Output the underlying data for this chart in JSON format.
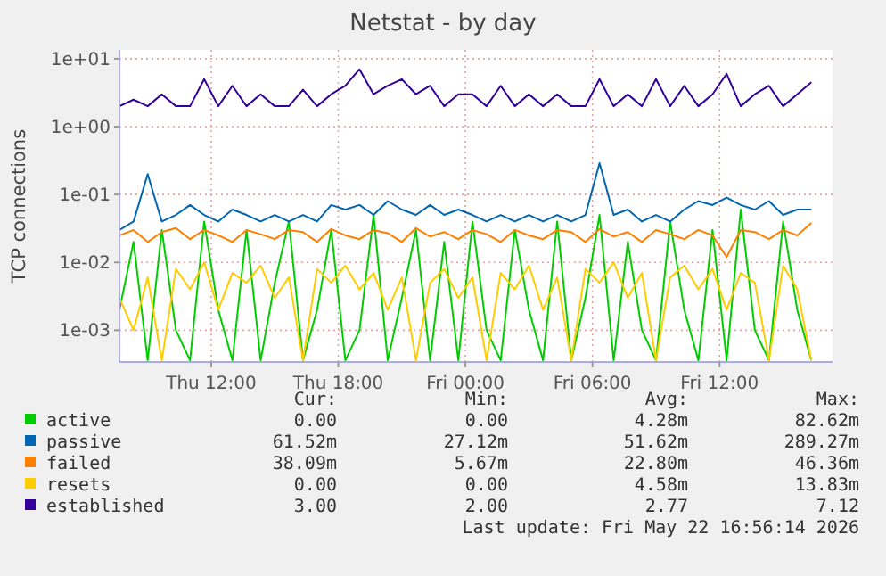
{
  "chart_data": {
    "type": "line",
    "title": "Netstat - by day",
    "ylabel": "TCP connections",
    "log": "y",
    "grid": true,
    "legend": "bottom",
    "ylim": [
      0.00034,
      13.5
    ],
    "yticks": [
      {
        "value": 0.001,
        "label": "1e-03"
      },
      {
        "value": 0.01,
        "label": "1e-02"
      },
      {
        "value": 0.1,
        "label": "1e-01"
      },
      {
        "value": 1,
        "label": "1e+00"
      },
      {
        "value": 10,
        "label": "1e+01"
      }
    ],
    "xlim": [
      "2026-05-21T07:40",
      "2026-05-22T17:20"
    ],
    "xticks": [
      {
        "value": "2026-05-21T12:00",
        "label": "Thu 12:00"
      },
      {
        "value": "2026-05-21T18:00",
        "label": "Thu 18:00"
      },
      {
        "value": "2026-05-22T00:00",
        "label": "Fri 00:00"
      },
      {
        "value": "2026-05-22T06:00",
        "label": "Fri 06:00"
      },
      {
        "value": "2026-05-22T12:00",
        "label": "Fri 12:00"
      }
    ],
    "x": [
      "2026-05-21T07:40",
      "2026-05-21T08:20",
      "2026-05-21T09:00",
      "2026-05-21T09:40",
      "2026-05-21T10:20",
      "2026-05-21T11:00",
      "2026-05-21T11:40",
      "2026-05-21T12:20",
      "2026-05-21T13:00",
      "2026-05-21T13:40",
      "2026-05-21T14:20",
      "2026-05-21T15:00",
      "2026-05-21T15:40",
      "2026-05-21T16:20",
      "2026-05-21T17:00",
      "2026-05-21T17:40",
      "2026-05-21T18:20",
      "2026-05-21T19:00",
      "2026-05-21T19:40",
      "2026-05-21T20:20",
      "2026-05-21T21:00",
      "2026-05-21T21:40",
      "2026-05-21T22:20",
      "2026-05-21T23:00",
      "2026-05-21T23:40",
      "2026-05-22T00:20",
      "2026-05-22T01:00",
      "2026-05-22T01:40",
      "2026-05-22T02:20",
      "2026-05-22T03:00",
      "2026-05-22T03:40",
      "2026-05-22T04:20",
      "2026-05-22T05:00",
      "2026-05-22T05:40",
      "2026-05-22T06:20",
      "2026-05-22T07:00",
      "2026-05-22T07:40",
      "2026-05-22T08:20",
      "2026-05-22T09:00",
      "2026-05-22T09:40",
      "2026-05-22T10:20",
      "2026-05-22T11:00",
      "2026-05-22T11:40",
      "2026-05-22T12:20",
      "2026-05-22T13:00",
      "2026-05-22T13:40",
      "2026-05-22T14:20",
      "2026-05-22T15:00",
      "2026-05-22T15:40",
      "2026-05-22T16:20"
    ],
    "series": [
      {
        "name": "active",
        "color": "#00cc00",
        "values": [
          0.002,
          0.02,
          0.00036,
          0.03,
          0.001,
          0.00036,
          0.04,
          0.002,
          0.00036,
          0.03,
          0.00036,
          0.005,
          0.04,
          0.00036,
          0.002,
          0.03,
          0.00036,
          0.001,
          0.05,
          0.00036,
          0.003,
          0.03,
          0.00036,
          0.02,
          0.00036,
          0.04,
          0.001,
          0.00036,
          0.03,
          0.002,
          0.00036,
          0.04,
          0.00036,
          0.003,
          0.05,
          0.00036,
          0.02,
          0.001,
          0.00036,
          0.04,
          0.002,
          0.00036,
          0.03,
          0.00036,
          0.06,
          0.001,
          0.00036,
          0.04,
          0.002,
          0.00036
        ]
      },
      {
        "name": "passive",
        "color": "#0066b3",
        "values": [
          0.03,
          0.04,
          0.2,
          0.04,
          0.05,
          0.07,
          0.05,
          0.04,
          0.06,
          0.05,
          0.04,
          0.05,
          0.04,
          0.05,
          0.04,
          0.07,
          0.06,
          0.07,
          0.05,
          0.08,
          0.06,
          0.05,
          0.07,
          0.05,
          0.06,
          0.05,
          0.04,
          0.05,
          0.04,
          0.05,
          0.04,
          0.05,
          0.04,
          0.05,
          0.29,
          0.05,
          0.06,
          0.04,
          0.05,
          0.04,
          0.06,
          0.08,
          0.07,
          0.09,
          0.07,
          0.06,
          0.08,
          0.05,
          0.06,
          0.06
        ]
      },
      {
        "name": "failed",
        "color": "#ff8000",
        "values": [
          0.025,
          0.03,
          0.02,
          0.028,
          0.032,
          0.022,
          0.03,
          0.025,
          0.02,
          0.03,
          0.026,
          0.022,
          0.03,
          0.028,
          0.02,
          0.031,
          0.025,
          0.022,
          0.03,
          0.027,
          0.02,
          0.032,
          0.024,
          0.028,
          0.022,
          0.03,
          0.026,
          0.02,
          0.03,
          0.025,
          0.022,
          0.03,
          0.028,
          0.02,
          0.031,
          0.024,
          0.028,
          0.02,
          0.03,
          0.026,
          0.022,
          0.03,
          0.025,
          0.012,
          0.03,
          0.028,
          0.022,
          0.03,
          0.025,
          0.038
        ]
      },
      {
        "name": "resets",
        "color": "#ffcc00",
        "values": [
          0.003,
          0.001,
          0.006,
          0.00036,
          0.008,
          0.004,
          0.01,
          0.002,
          0.007,
          0.005,
          0.009,
          0.003,
          0.006,
          0.00036,
          0.008,
          0.005,
          0.009,
          0.004,
          0.007,
          0.002,
          0.006,
          0.00036,
          0.005,
          0.008,
          0.003,
          0.006,
          0.00036,
          0.007,
          0.004,
          0.009,
          0.002,
          0.006,
          0.00036,
          0.008,
          0.005,
          0.01,
          0.003,
          0.007,
          0.00036,
          0.006,
          0.009,
          0.004,
          0.008,
          0.002,
          0.007,
          0.005,
          0.00036,
          0.009,
          0.004,
          0.00036
        ]
      },
      {
        "name": "established",
        "color": "#330099",
        "values": [
          2,
          2.5,
          2,
          3,
          2,
          2,
          5,
          2,
          4,
          2,
          3,
          2,
          2,
          3.5,
          2,
          3,
          4,
          7,
          3,
          4,
          5,
          3,
          4,
          2,
          3,
          3,
          2,
          4,
          2,
          3,
          2,
          3,
          2,
          2,
          5,
          2,
          3,
          2,
          5,
          2,
          4,
          2,
          3,
          6,
          2,
          3,
          4,
          2,
          3,
          4.5
        ]
      }
    ],
    "annotations": [
      "Cur:",
      "Min:",
      "Avg:",
      "Max:",
      "0.00",
      "0.00",
      "4.28m",
      "82.62m",
      "61.52m",
      "27.12m",
      "51.62m",
      "289.27m",
      "38.09m",
      "5.67m",
      "22.80m",
      "46.36m",
      "0.00",
      "0.00",
      "4.58m",
      "13.83m",
      "3.00",
      "2.00",
      "2.77",
      "7.12",
      "Last update: Fri May 22 16:56:14 2026"
    ]
  }
}
